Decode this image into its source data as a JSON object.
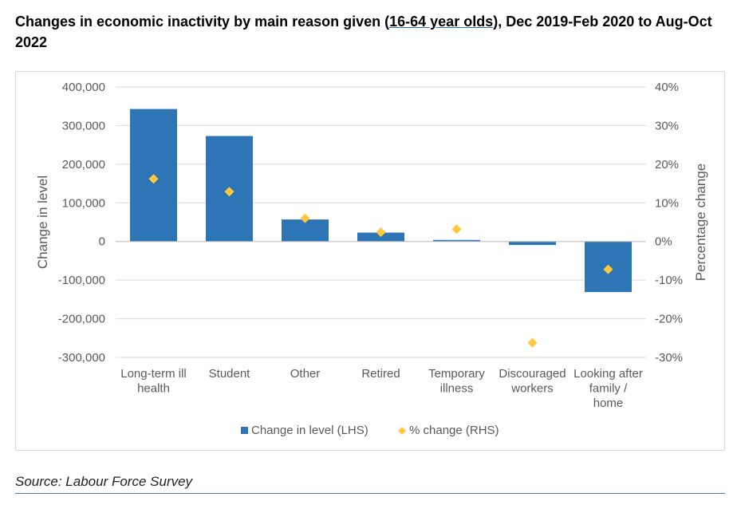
{
  "title": {
    "pre": "Changes in economic inactivity by main reason given (",
    "link": "16-64 year olds",
    "post": "), Dec 2019-Feb 2020 to Aug-Oct 2022"
  },
  "source": "Source: Labour Force Survey",
  "colors": {
    "bar": "#2e75b6",
    "marker": "#ffc83d",
    "grid": "#d9d9d9",
    "axis_text": "#595959"
  },
  "chart_data": {
    "type": "bar",
    "categories": [
      [
        "Long-term ill",
        "health"
      ],
      [
        "Student"
      ],
      [
        "Other"
      ],
      [
        "Retired"
      ],
      [
        "Temporary",
        "illness"
      ],
      [
        "Discouraged",
        "workers"
      ],
      [
        "Looking after",
        "family /",
        "home"
      ]
    ],
    "series": [
      {
        "name": "Change in level (LHS)",
        "type": "bar",
        "axis": "left",
        "values": [
          343000,
          273000,
          57000,
          23000,
          4000,
          -9000,
          -131000
        ]
      },
      {
        "name": "% change (RHS)",
        "type": "scatter",
        "axis": "right",
        "values": [
          16.2,
          12.9,
          6.0,
          2.4,
          3.2,
          -26.2,
          -7.2
        ]
      }
    ],
    "ylabel": "Change in level",
    "y2label": "Percentage change",
    "ylim": [
      -300000,
      400000
    ],
    "y2lim": [
      -30,
      40
    ],
    "yticks": [
      "400,000",
      "300,000",
      "200,000",
      "100,000",
      "0",
      "-100,000",
      "-200,000",
      "-300,000"
    ],
    "y2ticks": [
      "40%",
      "30%",
      "20%",
      "10%",
      "0%",
      "-10%",
      "-20%",
      "-30%"
    ],
    "legend_position": "bottom",
    "grid": true
  }
}
